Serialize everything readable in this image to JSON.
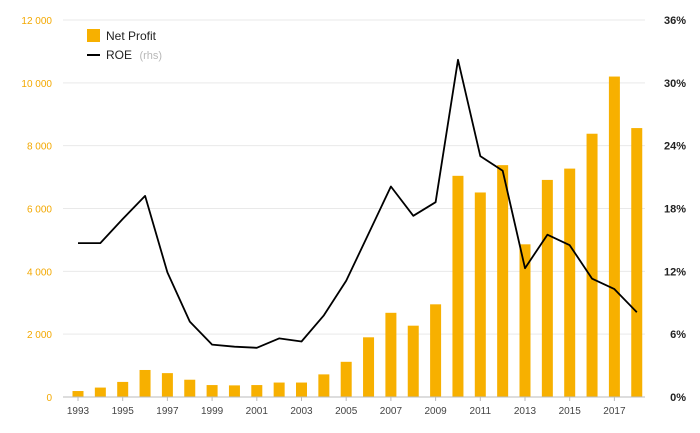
{
  "chart_data": {
    "type": "bar",
    "title": "",
    "xlabel": "",
    "ylabel": "",
    "categories": [
      "1993",
      "1994",
      "1995",
      "1996",
      "1997",
      "1998",
      "1999",
      "2000",
      "2001",
      "2002",
      "2003",
      "2004",
      "2005",
      "2006",
      "2007",
      "2008",
      "2009",
      "2010",
      "2011",
      "2012",
      "2013",
      "2014",
      "2015",
      "2016",
      "2017",
      "2018"
    ],
    "x_tick_labels": [
      "1993",
      "1995",
      "1997",
      "1999",
      "2001",
      "2003",
      "2005",
      "2007",
      "2009",
      "2011",
      "2013",
      "2015",
      "2017"
    ],
    "y_left_ticks": [
      "0",
      "2 000",
      "4 000",
      "6 000",
      "8 000",
      "10 000",
      "12 000"
    ],
    "y_right_ticks": [
      "0%",
      "6%",
      "12%",
      "18%",
      "24%",
      "30%",
      "36%"
    ],
    "ylim_left": [
      0,
      12000
    ],
    "ylim_right": [
      0,
      36
    ],
    "grid": true,
    "legend_position": "top-left",
    "series": [
      {
        "name": "Net Profit",
        "type": "bar",
        "axis": "left",
        "color": "#f7b000",
        "values": [
          190,
          300,
          480,
          860,
          760,
          550,
          380,
          370,
          380,
          460,
          460,
          720,
          1120,
          1900,
          2680,
          2270,
          2950,
          7040,
          6510,
          7380,
          4860,
          6910,
          7270,
          8380,
          10200,
          8560
        ]
      },
      {
        "name": "ROE",
        "name_note": "(rhs)",
        "type": "line",
        "axis": "right",
        "color": "#000000",
        "values": [
          14.7,
          14.7,
          17.0,
          19.2,
          11.9,
          7.2,
          5.0,
          4.8,
          4.7,
          5.6,
          5.3,
          7.8,
          11.1,
          15.6,
          20.1,
          17.3,
          18.6,
          32.2,
          23.0,
          21.6,
          12.3,
          15.5,
          14.5,
          11.3,
          10.3,
          8.1
        ]
      }
    ]
  }
}
